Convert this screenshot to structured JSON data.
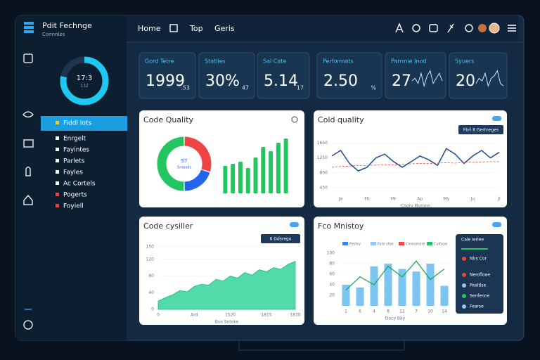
{
  "header": {
    "brand": "Pdit Fechnge",
    "tagline": "Connnles",
    "nav": [
      "Home",
      "Top",
      "Geris"
    ]
  },
  "sidebar": {
    "gauge": {
      "value": 78,
      "label": "17:3",
      "sublabel": "112"
    },
    "menu": [
      {
        "label": "Fiddl Iots",
        "active": true,
        "color": "#facc15"
      },
      {
        "label": "Enrgelt",
        "color": "#ffffff"
      },
      {
        "label": "Fayintes",
        "color": "#ffffff"
      },
      {
        "label": "Parlets",
        "color": "#ffffff"
      },
      {
        "label": "Fayles",
        "color": "#ffffff"
      },
      {
        "label": "Ac Cortels",
        "color": "#ffffff"
      },
      {
        "label": "Pogerts",
        "color": "#ef4444"
      },
      {
        "label": "Foyiell",
        "color": "#ef4444"
      }
    ]
  },
  "kpis": [
    {
      "label": "Gord Tetre",
      "value": "1999",
      "delta": ".53"
    },
    {
      "label": "Statlies",
      "value": "30%",
      "delta": "47"
    },
    {
      "label": "Sal Cate",
      "value": "5.14",
      "delta": "17"
    },
    {
      "label": "Performats",
      "value": "2.50",
      "delta": "%"
    },
    {
      "label": "Parrmie Inod",
      "value": "27",
      "spark": [
        5,
        6,
        4,
        8,
        3,
        7,
        9,
        4,
        6,
        8,
        5
      ],
      "ylim": [
        0,
        10
      ]
    },
    {
      "label": "Syuers",
      "value": "20",
      "spark": [
        4,
        6,
        5,
        8,
        3,
        6,
        7,
        9,
        4,
        3
      ],
      "ylim": [
        0,
        10
      ]
    }
  ],
  "panels": [
    {
      "title": "Code Quality",
      "charts": [
        {
          "type": "donut",
          "values": [
            30,
            20,
            50
          ],
          "colors": [
            "#ef4444",
            "#2563eb",
            "#22c55e"
          ],
          "center_label": "57",
          "center_sublabel": "Smeads"
        },
        {
          "type": "bar",
          "values": [
            6.5,
            7,
            7.5,
            6,
            8.5,
            11,
            10,
            12,
            13
          ],
          "color": "#22c55e",
          "ylim": [
            0,
            15
          ]
        }
      ]
    },
    {
      "title": "Cold quality",
      "tag": "Fbrl 8 Gertneges",
      "charts": [
        {
          "type": "line",
          "x": [
            0,
            1,
            2,
            3,
            4,
            5,
            6,
            7,
            8,
            9,
            10,
            11,
            12,
            13,
            14,
            15,
            16,
            17,
            18,
            19
          ],
          "xlim": [
            0,
            19
          ],
          "xticks": [
            {
              "value": 1,
              "label": "Ja"
            },
            {
              "value": 4,
              "label": "Fb"
            },
            {
              "value": 7,
              "label": "Mr"
            },
            {
              "value": 10,
              "label": "Ap"
            },
            {
              "value": 13,
              "label": "My"
            },
            {
              "value": 16,
              "label": "Ju"
            },
            {
              "value": 19,
              "label": "Jl"
            }
          ],
          "ylim": [
            300,
            1900
          ],
          "yticks": [
            450,
            850,
            1250,
            1650
          ],
          "xlabel": "Coory Mornnn",
          "series": [
            {
              "color": "#1e4d8c",
              "values": [
                1300,
                1450,
                1100,
                900,
                1000,
                1250,
                1350,
                1150,
                1000,
                1150,
                1300,
                1200,
                1050,
                1500,
                1350,
                1100,
                1300,
                1450,
                1250,
                1400
              ]
            },
            {
              "color": "#ef4444",
              "dashed": true,
              "values": [
                1000,
                1020,
                1030,
                1050,
                1040,
                1060,
                1070,
                1060,
                1080,
                1090,
                1100,
                1100,
                1110,
                1120,
                1110,
                1130,
                1140,
                1140,
                1150,
                1150
              ]
            }
          ]
        }
      ]
    },
    {
      "title": "Code cysiller",
      "tag": "6 Gdsrego",
      "charts": [
        {
          "type": "area",
          "x": [
            0,
            1,
            2,
            3,
            4,
            5,
            6,
            7,
            8,
            9,
            10,
            11,
            12,
            13,
            14,
            15,
            16,
            17,
            18,
            19
          ],
          "xlim": [
            0,
            19
          ],
          "xticks": [
            {
              "value": 0,
              "label": "0"
            },
            {
              "value": 5,
              "label": "Ard"
            },
            {
              "value": 10,
              "label": "1520"
            },
            {
              "value": 15,
              "label": "1815"
            },
            {
              "value": 19,
              "label": "1830"
            }
          ],
          "ylim": [
            0,
            160
          ],
          "yticks": [
            0,
            40,
            80,
            120,
            150
          ],
          "xlabel": "Bus Sotoke",
          "color": "#34d399",
          "values": [
            20,
            28,
            35,
            45,
            42,
            55,
            60,
            58,
            72,
            68,
            80,
            75,
            88,
            82,
            95,
            90,
            100,
            96,
            108,
            115
          ]
        }
      ]
    },
    {
      "title": "Fco Mnistoy",
      "charts": [
        {
          "type": "combo",
          "categories": [
            "1",
            "6",
            "4",
            "8",
            "12",
            "7",
            "10",
            "14"
          ],
          "ylim": [
            0,
            100
          ],
          "yticks": [
            20,
            40,
            60,
            80,
            100
          ],
          "xlabel": "Dacy Bay",
          "legend": [
            {
              "label": "Fesfey",
              "color": "#3b82f6"
            },
            {
              "label": "Fate sfoe",
              "color": "#93c5fd"
            },
            {
              "label": "Cmeomere",
              "color": "#ef4444"
            },
            {
              "label": "Cultoye",
              "color": "#22c55e"
            }
          ],
          "series": [
            {
              "mark": "bar",
              "color": "#7cc4f2",
              "values": [
                40,
                35,
                75,
                80,
                70,
                65,
                80,
                38
              ]
            },
            {
              "mark": "line",
              "color": "#16a34a",
              "values": [
                30,
                55,
                40,
                75,
                55,
                85,
                50,
                70
              ]
            }
          ]
        }
      ],
      "popup": {
        "title": "Cale Ierlee",
        "items": [
          {
            "label": "Nlrs Cor",
            "color": "#ef4444"
          },
          {
            "label": "Nerofloae",
            "color": "#ef4444"
          },
          {
            "label": "Pealtlse",
            "color": "#93c5fd"
          },
          {
            "label": "Senfenne",
            "color": "#22c55e"
          },
          {
            "label": "Fearse",
            "color": "#93c5fd"
          }
        ]
      }
    }
  ]
}
